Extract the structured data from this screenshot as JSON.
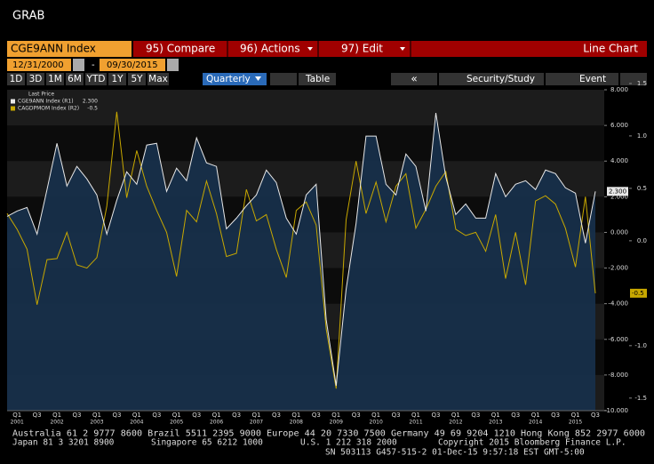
{
  "ui": {
    "title": "GRAB",
    "security": "CGE9ANN Index",
    "menu": [
      "95) Compare",
      "96) Actions",
      "97) Edit"
    ],
    "chart_kind": "Line Chart",
    "start_date": "12/31/2000",
    "date_separator": "-",
    "end_date": "09/30/2015",
    "periods": [
      "1D",
      "3D",
      "1M",
      "6M",
      "YTD",
      "1Y",
      "5Y",
      "Max"
    ],
    "frequency": "Quarterly",
    "table": "Table",
    "security_study": "Security/Study",
    "event": "Event"
  },
  "chart_data": {
    "type": "line",
    "legend_title": "Last Price",
    "categories": [
      null,
      "Q1",
      null,
      "Q3",
      null,
      "Q1",
      null,
      "Q3",
      null,
      "Q1",
      null,
      "Q3",
      null,
      "Q1",
      null,
      "Q3",
      null,
      "Q1",
      null,
      "Q3",
      null,
      "Q1",
      null,
      "Q3",
      null,
      "Q1",
      null,
      "Q3",
      null,
      "Q1",
      null,
      "Q3",
      null,
      "Q1",
      null,
      "Q3",
      null,
      "Q1",
      null,
      "Q3",
      null,
      "Q1",
      null,
      "Q3",
      null,
      "Q1",
      null,
      "Q3",
      null,
      "Q1",
      null,
      "Q3",
      null,
      "Q1",
      null,
      "Q3",
      null,
      "Q1",
      null,
      "Q3"
    ],
    "years": [
      null,
      "2001",
      null,
      null,
      null,
      "2002",
      null,
      null,
      null,
      "2003",
      null,
      null,
      null,
      "2004",
      null,
      null,
      null,
      "2005",
      null,
      null,
      null,
      "2006",
      null,
      null,
      null,
      "2007",
      null,
      null,
      null,
      "2008",
      null,
      null,
      null,
      "2009",
      null,
      null,
      null,
      "2010",
      null,
      null,
      null,
      "2011",
      null,
      null,
      null,
      "2012",
      null,
      null,
      null,
      "2013",
      null,
      null,
      null,
      "2014",
      null,
      null,
      null,
      "2015",
      null,
      null
    ],
    "series": [
      {
        "name": "CGE9ANN Index (R1)",
        "color": "#e8e8e8",
        "axis": "y",
        "last_label": "2.300",
        "last": 2.3,
        "values": [
          0.9,
          1.2,
          1.4,
          -0.1,
          2.4,
          5.0,
          2.6,
          3.7,
          3.0,
          2.1,
          -0.1,
          1.8,
          3.4,
          2.7,
          4.9,
          5.0,
          2.3,
          3.6,
          2.9,
          5.3,
          3.9,
          3.7,
          0.2,
          0.8,
          1.5,
          2.1,
          3.5,
          2.8,
          0.8,
          -0.1,
          2.1,
          2.7,
          -4.9,
          -8.6,
          -3.2,
          0.5,
          5.4,
          5.4,
          2.7,
          2.1,
          4.4,
          3.7,
          1.2,
          6.7,
          3.1,
          1.0,
          1.6,
          0.8,
          0.8,
          3.3,
          2.0,
          2.7,
          2.9,
          2.4,
          3.5,
          3.3,
          2.5,
          2.2,
          -0.6,
          2.3
        ]
      },
      {
        "name": "CAGDPMOM Index (R2)",
        "color": "#c8a800",
        "axis": "y2",
        "last_label": "-0.5",
        "last": -0.5,
        "values": [
          0.26,
          0.11,
          -0.08,
          -0.61,
          -0.18,
          -0.17,
          0.08,
          -0.23,
          -0.26,
          -0.16,
          0.33,
          1.23,
          0.41,
          0.86,
          0.52,
          0.29,
          0.08,
          -0.34,
          0.29,
          0.18,
          0.57,
          0.26,
          -0.15,
          -0.12,
          0.49,
          0.19,
          0.25,
          -0.08,
          -0.35,
          0.29,
          0.37,
          0.15,
          -0.84,
          -1.41,
          0.2,
          0.76,
          0.26,
          0.56,
          0.18,
          0.52,
          0.64,
          0.12,
          0.3,
          0.52,
          0.66,
          0.11,
          0.05,
          0.08,
          -0.1,
          0.25,
          -0.36,
          0.08,
          -0.42,
          0.38,
          0.43,
          0.35,
          0.12,
          -0.25,
          0.42,
          -0.5
        ]
      }
    ],
    "ylim": [
      -10,
      8
    ],
    "yticks": [
      {
        "value": 8,
        "label": "8.000"
      },
      {
        "value": 6,
        "label": "6.000"
      },
      {
        "value": 4,
        "label": "4.000"
      },
      {
        "value": 2,
        "label": "2.000"
      },
      {
        "value": 0,
        "label": "0.000"
      },
      {
        "value": -2,
        "label": "-2.000"
      },
      {
        "value": -4,
        "label": "-4.000"
      },
      {
        "value": -6,
        "label": "-6.000"
      },
      {
        "value": -8,
        "label": "-8.000"
      },
      {
        "value": -10,
        "label": "-10.000"
      }
    ],
    "y2lim": [
      -1.62,
      1.44
    ],
    "y2ticks": [
      1.5,
      {
        "value": 1,
        "label": "1.0"
      },
      0.5,
      {
        "value": 0,
        "label": "0.0"
      },
      {
        "value": -1,
        "label": "-1.0"
      },
      -1.5
    ]
  },
  "footer": {
    "line1": "Australia 61 2 9777 8600 Brazil 5511 2395 9000 Europe 44 20 7330 7500 Germany 49 69 9204 1210 Hong Kong 852 2977 6000",
    "line2": [
      "Japan 81 3 3201 8900",
      "Singapore 65 6212 1000",
      "U.S. 1 212 318 2000",
      "Copyright 2015 Bloomberg Finance L.P."
    ],
    "line3": "SN 503113 G457-515-2 01-Dec-15  9:57:18 EST  GMT-5:00"
  }
}
